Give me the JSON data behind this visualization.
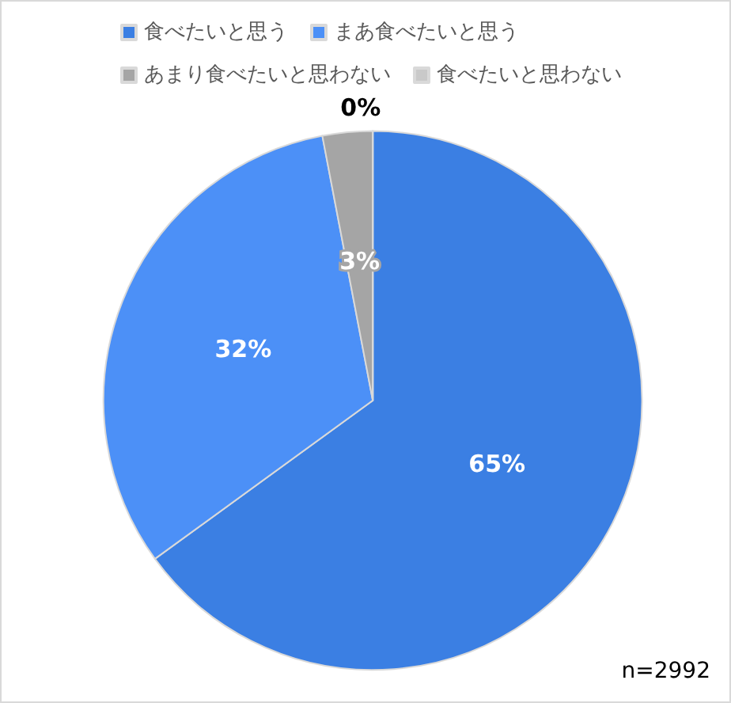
{
  "chart_data": {
    "type": "pie",
    "categories": [
      "食べたいと思う",
      "まあ食べたいと思う",
      "あまり食べたいと思わない",
      "食べたいと思わない"
    ],
    "values": [
      65,
      32,
      3,
      0
    ],
    "colors": [
      "#3b7fe3",
      "#4c90f7",
      "#a5a5a5",
      "#c9c9c9"
    ],
    "value_labels": [
      "65%",
      "32%",
      "3%",
      "0%"
    ],
    "legend": "top",
    "annotations": [
      "n=2992"
    ]
  }
}
